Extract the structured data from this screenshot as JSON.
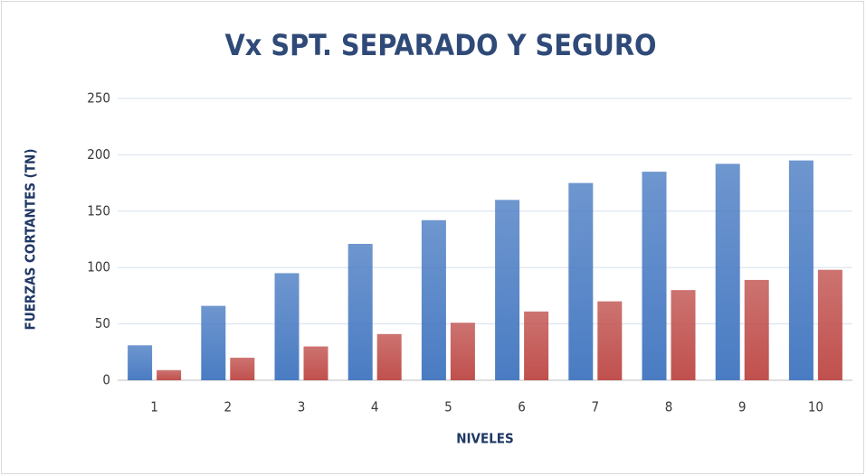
{
  "chart_data": {
    "type": "bar",
    "title": "Vx SPT. SEPARADO Y SEGURO",
    "x_label": "NIVELES",
    "y_label": "FUERZAS CORTANTES (TN)",
    "categories": [
      "1",
      "2",
      "3",
      "4",
      "5",
      "6",
      "7",
      "8",
      "9",
      "10"
    ],
    "series": [
      {
        "color": "#4a7cc3",
        "values": [
          31,
          66,
          95,
          121,
          142,
          160,
          175,
          185,
          192,
          195
        ]
      },
      {
        "color": "#c0504d",
        "values": [
          9,
          20,
          30,
          41,
          51,
          61,
          70,
          80,
          89,
          98
        ]
      }
    ],
    "ylim": [
      0,
      250
    ],
    "yticks": [
      0,
      50,
      100,
      150,
      200,
      250
    ],
    "grid": true
  }
}
